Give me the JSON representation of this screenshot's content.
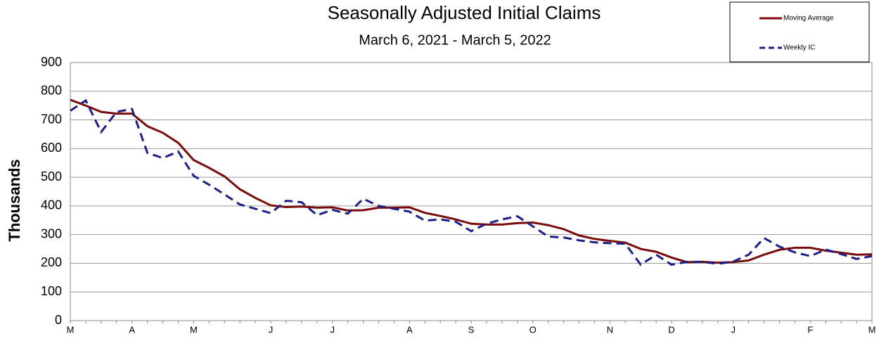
{
  "chart_data": {
    "type": "line",
    "title": "Seasonally Adjusted Initial Claims",
    "subtitle": "March 6, 2021 - March 5, 2022",
    "y_label": "Thousands",
    "categories": [
      "M",
      null,
      null,
      null,
      "A",
      null,
      null,
      null,
      "M",
      null,
      null,
      null,
      null,
      "J",
      null,
      null,
      null,
      "J",
      null,
      null,
      null,
      null,
      "A",
      null,
      null,
      null,
      "S",
      null,
      null,
      null,
      "O",
      null,
      null,
      null,
      null,
      "N",
      null,
      null,
      null,
      "D",
      null,
      null,
      null,
      "J",
      null,
      null,
      null,
      null,
      "F",
      null,
      null,
      null,
      "M"
    ],
    "series": [
      {
        "name": "Moving Average",
        "color": "#7b0a0a",
        "dashed": false,
        "values": [
          770,
          750,
          728,
          722,
          722,
          678,
          655,
          620,
          560,
          533,
          503,
          458,
          428,
          402,
          396,
          398,
          394,
          395,
          384,
          385,
          394,
          394,
          395,
          376,
          365,
          353,
          338,
          335,
          335,
          340,
          342,
          333,
          319,
          297,
          285,
          278,
          272,
          250,
          240,
          220,
          204,
          205,
          202,
          204,
          210,
          230,
          247,
          254,
          254,
          244,
          237,
          230,
          231
        ]
      },
      {
        "name": "Weekly IC",
        "color": "#1b1f8a",
        "dashed": true,
        "values": [
          732,
          768,
          658,
          728,
          738,
          585,
          567,
          590,
          505,
          474,
          440,
          405,
          390,
          375,
          418,
          413,
          368,
          386,
          373,
          425,
          400,
          390,
          380,
          349,
          353,
          345,
          312,
          338,
          353,
          364,
          329,
          293,
          290,
          280,
          273,
          270,
          268,
          195,
          230,
          195,
          205,
          205,
          198,
          206,
          230,
          288,
          258,
          238,
          225,
          248,
          232,
          215,
          225
        ]
      }
    ],
    "ylim": [
      0,
      900
    ],
    "yticks": [
      0,
      100,
      200,
      300,
      400,
      500,
      600,
      700,
      800,
      900
    ],
    "grid": true
  }
}
